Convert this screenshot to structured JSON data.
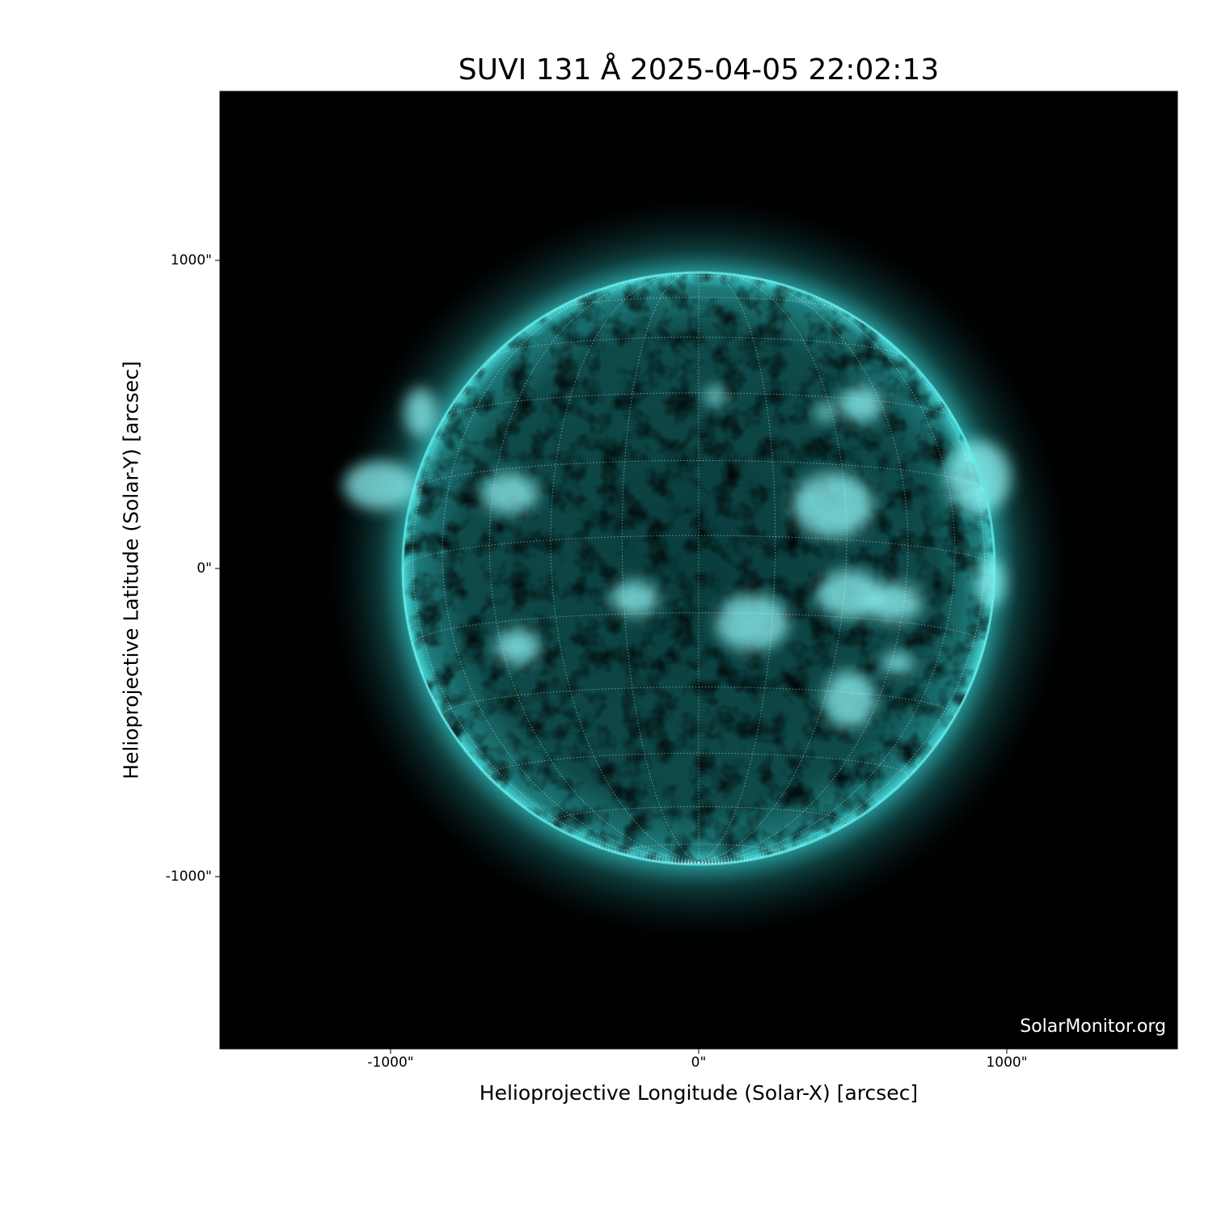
{
  "title": "SUVI 131 Å 2025-04-05 22:02:13",
  "x_axis": {
    "label": "Helioprojective Longitude (Solar-X) [arcsec]",
    "ticks": [
      "-1000\"",
      "0\"",
      "1000\""
    ],
    "tick_values": [
      -1000,
      0,
      1000
    ]
  },
  "y_axis": {
    "label": "Helioprojective Latitude (Solar-Y) [arcsec]",
    "ticks": [
      "1000\"",
      "0\"",
      "-1000\""
    ],
    "tick_values": [
      1000,
      0,
      -1000
    ]
  },
  "watermark": "SolarMonitor.org",
  "colors": {
    "background": "#000000",
    "sun": "#1fbfbf",
    "bright": "#bfffff"
  },
  "grid": {
    "spacing_deg": 15,
    "style": "dotted"
  }
}
